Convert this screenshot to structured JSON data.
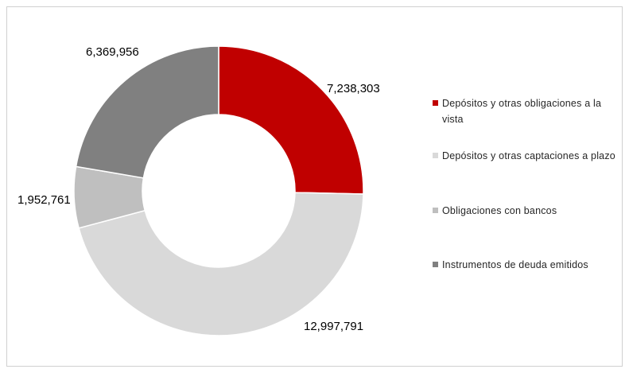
{
  "chart_data": {
    "type": "pie",
    "variant": "donut",
    "title": "",
    "legend_position": "right",
    "series": [
      {
        "label": "Depósitos y otras obligaciones a la vista",
        "value": 7238303,
        "display": "7,238,303",
        "color": "#c00000"
      },
      {
        "label": "Depósitos y otras captaciones a plazo",
        "value": 12997791,
        "display": "12,997,791",
        "color": "#d9d9d9"
      },
      {
        "label": "Obligaciones con bancos",
        "value": 1952761,
        "display": "1,952,761",
        "color": "#bfbfbf"
      },
      {
        "label": "Instrumentos de deuda emitidos",
        "value": 6369956,
        "display": "6,369,956",
        "color": "#808080"
      }
    ]
  }
}
